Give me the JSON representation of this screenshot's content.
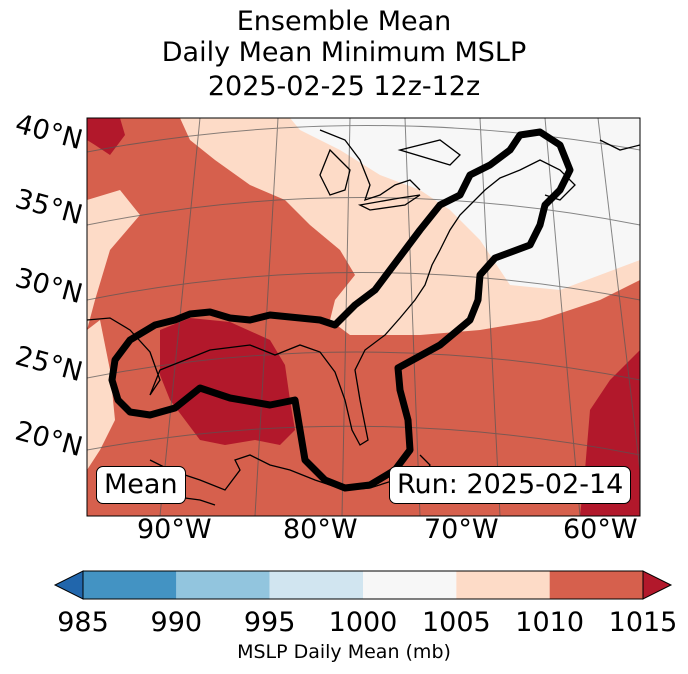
{
  "title": {
    "line1": "Ensemble Mean",
    "line2": "Daily Mean Minimum MSLP",
    "line3": "2025-02-25 12z-12z"
  },
  "map": {
    "lat_labels": [
      "40°N",
      "35°N",
      "30°N",
      "25°N",
      "20°N"
    ],
    "lon_labels": [
      "90°W",
      "80°W",
      "70°W",
      "60°W"
    ],
    "mean_box": "Mean",
    "run_box": "Run: 2025-02-14",
    "fill_colors": {
      "c1015": "#b2182b",
      "c1010": "#d6604d",
      "c1005": "#fddbc7",
      "c1000": "#f7f7f7"
    }
  },
  "colorbar": {
    "label": "MSLP Daily Mean (mb)",
    "ticks": [
      "985",
      "990",
      "995",
      "1000",
      "1005",
      "1010",
      "1015"
    ],
    "colors": [
      "#2166ac",
      "#4393c3",
      "#92c5de",
      "#d1e5f0",
      "#f7f7f7",
      "#fddbc7",
      "#d6604d",
      "#b2182b"
    ]
  }
}
